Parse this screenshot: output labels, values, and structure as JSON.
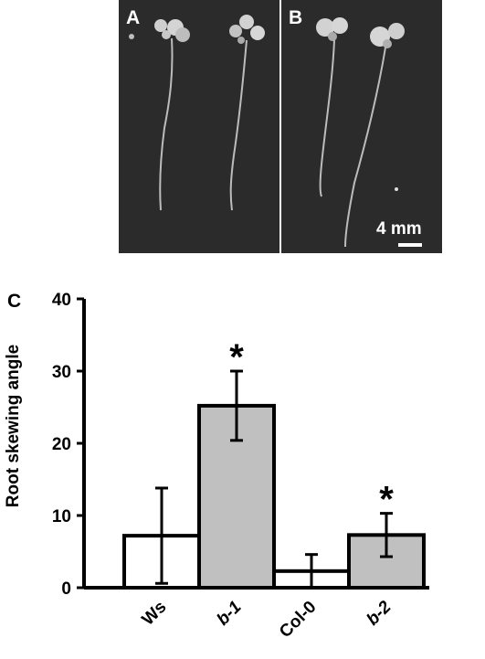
{
  "panels": {
    "a_label": "A",
    "b_label": "B",
    "scale_label": "4 mm",
    "c_label": "C"
  },
  "chart_data": {
    "type": "bar",
    "ylabel": "Root skewing angle",
    "xlabel": "",
    "ylim": [
      0,
      40
    ],
    "yticks": [
      0,
      10,
      20,
      30,
      40
    ],
    "categories": [
      "Ws",
      "b-1",
      "Col-0",
      "b-2"
    ],
    "values": [
      7.2,
      25.2,
      2.3,
      7.3
    ],
    "errors": [
      6.6,
      4.8,
      2.3,
      3.0
    ],
    "significant": [
      false,
      true,
      false,
      true
    ],
    "significance_marker": "*",
    "colors": [
      "#ffffff",
      "#c0c0c0",
      "#ffffff",
      "#c0c0c0"
    ],
    "grid": false
  }
}
